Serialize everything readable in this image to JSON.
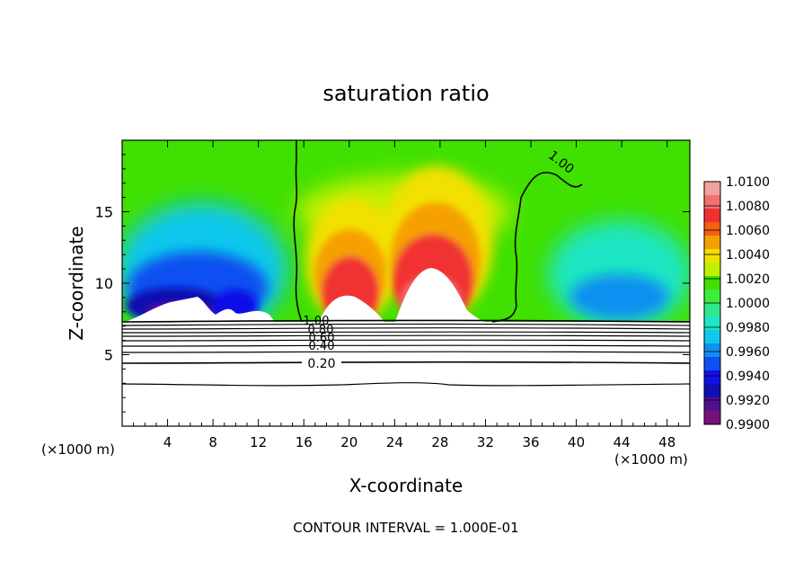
{
  "chart_data": {
    "type": "heatmap",
    "title": "saturation ratio",
    "xlabel": "X-coordinate",
    "ylabel": "Z-coordinate",
    "x_units": "(×1000 m)",
    "x_units_right": "(×1000 m)",
    "xlim": [
      0,
      50
    ],
    "ylim": [
      0,
      20
    ],
    "x_ticks": [
      4,
      8,
      12,
      16,
      20,
      24,
      28,
      32,
      36,
      40,
      44,
      48
    ],
    "y_ticks": [
      5,
      10,
      15
    ],
    "colorbar": {
      "min": 0.99,
      "max": 1.01,
      "tick_labels": [
        "1.0100",
        "1.0080",
        "1.0060",
        "1.0040",
        "1.0020",
        "1.0000",
        "0.9980",
        "0.9960",
        "0.9940",
        "0.9920",
        "0.9900"
      ],
      "colors": [
        "#f3a0a0",
        "#f47070",
        "#f03030",
        "#f26010",
        "#f6a000",
        "#f2e000",
        "#c0f000",
        "#40e000",
        "#3cee3c",
        "#2ee88a",
        "#1ce6c4",
        "#10c8ec",
        "#1090f0",
        "#1050f0",
        "#1010e8",
        "#1010b0",
        "#50108c",
        "#781078"
      ]
    },
    "contour_labels": [
      "1.00",
      "1.00",
      "0.80",
      "0.60",
      "0.40",
      "0.20"
    ],
    "footer": "CONTOUR INTERVAL = 1.000E-01",
    "features": {
      "cloud_base_z": 7.3,
      "moist_plumes_x": [
        20,
        28
      ],
      "contour_1_00_x": [
        15.5,
        34.5
      ]
    }
  }
}
